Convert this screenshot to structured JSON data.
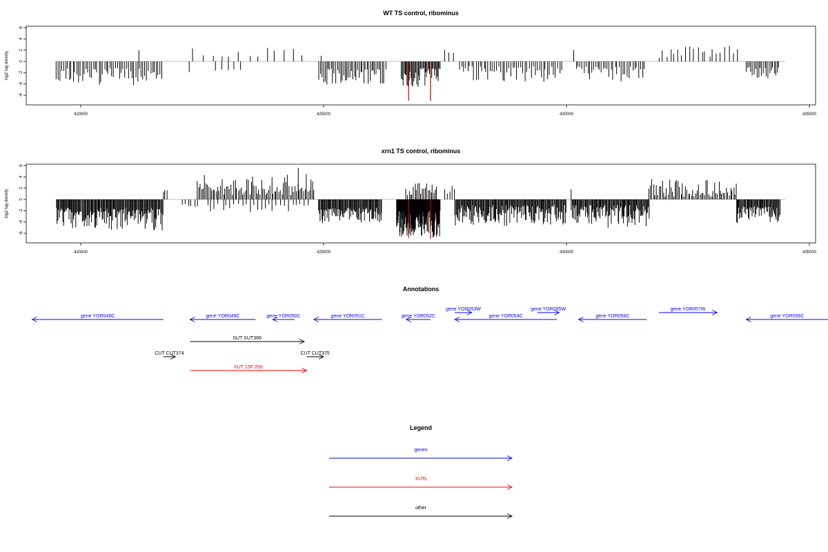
{
  "chart_data": [
    {
      "type": "bar",
      "title": "WT TS control, ribominus",
      "ylabel": "log2 tag density",
      "xlim": [
        419000,
        435000
      ],
      "ylim": [
        -7,
        6
      ],
      "xticks": [
        420000,
        425000,
        430000,
        435000
      ],
      "yticks": [
        -6,
        -4,
        -2,
        0,
        2,
        4,
        6
      ],
      "grid": false,
      "baseline_color": "#aaaaaa",
      "bar_color": "#000000",
      "highlight_color": "#cc0000",
      "segments": [
        {
          "start": 419500,
          "end": 421700,
          "step": 38,
          "dir": -1,
          "min": 1.2,
          "max": 4.2
        },
        {
          "start": 421200,
          "end": 421200,
          "step": 38,
          "dir": 1,
          "min": 2.0,
          "max": 2.0
        },
        {
          "start": 422240,
          "end": 422240,
          "step": 38,
          "dir": -1,
          "min": 1.9,
          "max": 1.9
        },
        {
          "start": 422300,
          "end": 424600,
          "step": 190,
          "dir": 1,
          "min": 0.8,
          "max": 2.4
        },
        {
          "start": 422800,
          "end": 423300,
          "step": 120,
          "dir": -1,
          "min": 1.0,
          "max": 1.8
        },
        {
          "start": 424950,
          "end": 424950,
          "step": 38,
          "dir": 1,
          "min": 1.0,
          "max": 1.0
        },
        {
          "start": 424900,
          "end": 426300,
          "step": 32,
          "dir": -1,
          "min": 1.3,
          "max": 4.1
        },
        {
          "start": 426600,
          "end": 427400,
          "step": 20,
          "dir": -1,
          "min": 1.2,
          "max": 4.6
        },
        {
          "start": 427500,
          "end": 427700,
          "step": 100,
          "dir": 1,
          "min": 0.9,
          "max": 2.2
        },
        {
          "start": 427800,
          "end": 429900,
          "step": 42,
          "dir": -1,
          "min": 0.8,
          "max": 3.6
        },
        {
          "start": 430150,
          "end": 430150,
          "step": 38,
          "dir": 1,
          "min": 2.0,
          "max": 2.0
        },
        {
          "start": 430200,
          "end": 431600,
          "step": 40,
          "dir": -1,
          "min": 0.9,
          "max": 3.8
        },
        {
          "start": 431900,
          "end": 433500,
          "step": 80,
          "dir": 1,
          "min": 0.6,
          "max": 2.8
        },
        {
          "start": 433700,
          "end": 434400,
          "step": 32,
          "dir": -1,
          "min": 1.0,
          "max": 3.2
        }
      ],
      "highlights": [
        {
          "x": 426750,
          "y": -7.0
        },
        {
          "x": 427200,
          "y": -7.0
        }
      ]
    },
    {
      "type": "bar",
      "title": "xrn1 TS control, ribominus",
      "ylabel": "log2 tag density",
      "xlim": [
        419000,
        435000
      ],
      "ylim": [
        -7,
        6
      ],
      "xticks": [
        420000,
        425000,
        430000,
        435000
      ],
      "yticks": [
        -6,
        -4,
        -2,
        0,
        2,
        4,
        6
      ],
      "grid": false,
      "baseline_color": "#aaaaaa",
      "bar_color": "#000000",
      "highlight_color": "#cc0000",
      "segments": [
        {
          "start": 419500,
          "end": 421700,
          "step": 16,
          "dir": -1,
          "min": 1.5,
          "max": 5.5
        },
        {
          "start": 421700,
          "end": 421800,
          "step": 40,
          "dir": 1,
          "min": 1.0,
          "max": 2.0
        },
        {
          "start": 422100,
          "end": 422400,
          "step": 60,
          "dir": -1,
          "min": 0.8,
          "max": 2.0
        },
        {
          "start": 422400,
          "end": 424800,
          "step": 30,
          "dir": 1,
          "min": 0.8,
          "max": 4.5
        },
        {
          "start": 424480,
          "end": 424480,
          "step": 38,
          "dir": 1,
          "min": 5.6,
          "max": 5.6
        },
        {
          "start": 422600,
          "end": 424700,
          "step": 80,
          "dir": -1,
          "min": 0.8,
          "max": 2.2
        },
        {
          "start": 424900,
          "end": 426200,
          "step": 16,
          "dir": -1,
          "min": 1.5,
          "max": 4.3
        },
        {
          "start": 426500,
          "end": 427400,
          "step": 8,
          "dir": -1,
          "min": 2.0,
          "max": 6.8
        },
        {
          "start": 426700,
          "end": 427350,
          "step": 30,
          "dir": 1,
          "min": 0.8,
          "max": 3.0
        },
        {
          "start": 427500,
          "end": 427700,
          "step": 50,
          "dir": 1,
          "min": 1.0,
          "max": 3.0
        },
        {
          "start": 427700,
          "end": 430000,
          "step": 16,
          "dir": -1,
          "min": 1.0,
          "max": 4.8
        },
        {
          "start": 430100,
          "end": 430100,
          "step": 38,
          "dir": 1,
          "min": 1.8,
          "max": 1.8
        },
        {
          "start": 430100,
          "end": 431700,
          "step": 16,
          "dir": -1,
          "min": 1.0,
          "max": 5.0
        },
        {
          "start": 431700,
          "end": 433500,
          "step": 30,
          "dir": 1,
          "min": 0.5,
          "max": 3.6
        },
        {
          "start": 433500,
          "end": 434400,
          "step": 16,
          "dir": -1,
          "min": 1.2,
          "max": 4.2
        }
      ],
      "highlights": [
        {
          "x": 426750,
          "y": -6.8
        },
        {
          "x": 427200,
          "y": -7.0
        }
      ]
    }
  ],
  "annotations": {
    "title": "Annotations",
    "features": [
      {
        "label": "gene YOR048C",
        "color": "#0000ff",
        "start": 419000,
        "end": 421700,
        "dir": -1,
        "row": 0
      },
      {
        "label": "gene YOR049C",
        "color": "#0000ff",
        "start": 422250,
        "end": 423600,
        "dir": -1,
        "row": 0
      },
      {
        "label": "gene YOR050C",
        "color": "#0000ff",
        "start": 423950,
        "end": 424400,
        "dir": -1,
        "row": 0
      },
      {
        "label": "gene YOR051C",
        "color": "#0000ff",
        "start": 424800,
        "end": 426200,
        "dir": -1,
        "row": 0
      },
      {
        "label": "gene YOR052C",
        "color": "#0000ff",
        "start": 426700,
        "end": 427200,
        "dir": -1,
        "row": 0
      },
      {
        "label": "gene YOR053W",
        "color": "#0000ff",
        "start": 427700,
        "end": 428050,
        "dir": 1,
        "row": -1
      },
      {
        "label": "gene YOR054C",
        "color": "#0000ff",
        "start": 427700,
        "end": 429800,
        "dir": -1,
        "row": 0
      },
      {
        "label": "gene YOR055W",
        "color": "#0000ff",
        "start": 429400,
        "end": 429850,
        "dir": 1,
        "row": -1
      },
      {
        "label": "gene YOR056C",
        "color": "#0000ff",
        "start": 430250,
        "end": 431650,
        "dir": -1,
        "row": 0
      },
      {
        "label": "gene YOR057W",
        "color": "#0000ff",
        "start": 431900,
        "end": 433100,
        "dir": 1,
        "row": -1
      },
      {
        "label": "gene YOR058C",
        "color": "#0000ff",
        "start": 433700,
        "end": 435500,
        "dir": -1,
        "row": 0
      },
      {
        "label": "SUT SUT366",
        "color": "#000000",
        "start": 422250,
        "end": 424600,
        "dir": 1,
        "row": 1
      },
      {
        "label": "CUT CUT374",
        "color": "#000000",
        "start": 421700,
        "end": 421950,
        "dir": 1,
        "row": 2
      },
      {
        "label": "CUT CUT375",
        "color": "#000000",
        "start": 424650,
        "end": 425000,
        "dir": 1,
        "row": 2
      },
      {
        "label": "XUT 15F-200",
        "color": "#ff0000",
        "start": 422250,
        "end": 424650,
        "dir": 1,
        "row": 3
      }
    ]
  },
  "legend": {
    "title": "Legend",
    "items": [
      {
        "label": "genes",
        "color": "#0000ff"
      },
      {
        "label": "XUTs",
        "color": "#ff0000"
      },
      {
        "label": "other",
        "color": "#000000"
      }
    ]
  }
}
